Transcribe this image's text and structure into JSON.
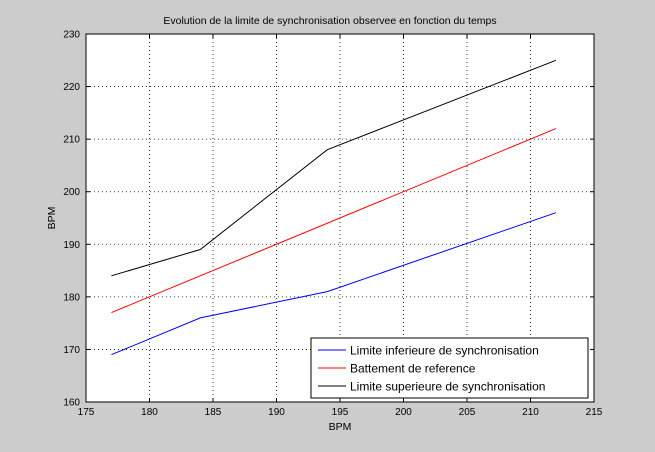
{
  "chart_data": {
    "type": "line",
    "title": "Evolution de la limite de synchronisation observee en fonction du temps",
    "xlabel": "BPM",
    "ylabel": "BPM",
    "xlim": [
      175,
      215
    ],
    "ylim": [
      160,
      230
    ],
    "xticks": [
      175,
      180,
      185,
      190,
      195,
      200,
      205,
      210,
      215
    ],
    "yticks": [
      160,
      170,
      180,
      190,
      200,
      210,
      220,
      230
    ],
    "grid": true,
    "legend_position": "bottom-right",
    "series": [
      {
        "name": "Limite inferieure de synchronisation",
        "color": "#0000ff",
        "x": [
          177,
          184,
          194,
          212
        ],
        "y": [
          169,
          176,
          181,
          196
        ]
      },
      {
        "name": "Battement de reference",
        "color": "#ff0000",
        "x": [
          177,
          212
        ],
        "y": [
          177,
          212
        ]
      },
      {
        "name": "Limite superieure de synchronisation",
        "color": "#000000",
        "x": [
          177,
          184,
          194,
          212
        ],
        "y": [
          184,
          189,
          208,
          225
        ]
      }
    ]
  }
}
